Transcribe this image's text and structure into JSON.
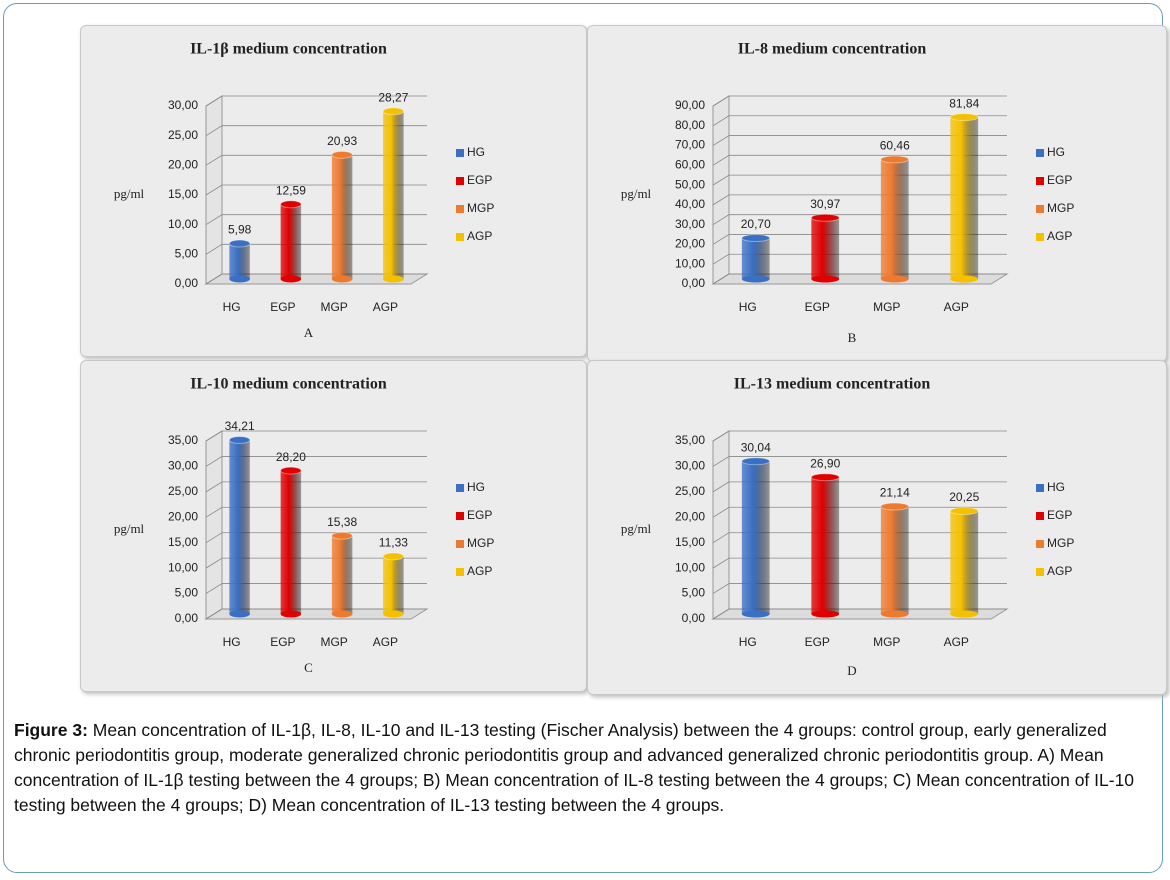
{
  "chart_data": [
    {
      "type": "bar",
      "title": "IL-1β medium concentration",
      "y_label": "pg/ml",
      "x_label": "A",
      "categories": [
        "HG",
        "EGP",
        "MGP",
        "AGP"
      ],
      "values": [
        5.98,
        12.59,
        20.93,
        28.27
      ],
      "value_labels": [
        "5,98",
        "12,59",
        "20,93",
        "28,27"
      ],
      "colors": [
        "#3a6fc4",
        "#e00000",
        "#ee7a30",
        "#f5c000"
      ],
      "legend": "right",
      "grid": true,
      "ylim": [
        0,
        30
      ],
      "yticks": [
        {
          "value": 0,
          "label": "0,00"
        },
        {
          "value": 5,
          "label": "5,00"
        },
        {
          "value": 10,
          "label": "10,00"
        },
        {
          "value": 15,
          "label": "15,00"
        },
        {
          "value": 20,
          "label": "20,00"
        },
        {
          "value": 25,
          "label": "25,00"
        },
        {
          "value": 30,
          "label": "30,00"
        }
      ]
    },
    {
      "type": "bar",
      "title": "IL-8 medium concentration",
      "y_label": "pg/ml",
      "x_label": "B",
      "categories": [
        "HG",
        "EGP",
        "MGP",
        "AGP"
      ],
      "values": [
        20.7,
        30.97,
        60.46,
        81.84
      ],
      "value_labels": [
        "20,70",
        "30,97",
        "60,46",
        "81,84"
      ],
      "colors": [
        "#3a6fc4",
        "#e00000",
        "#ee7a30",
        "#f5c000"
      ],
      "legend": "right",
      "grid": true,
      "ylim": [
        0,
        90
      ],
      "yticks": [
        {
          "value": 0,
          "label": "0,00"
        },
        {
          "value": 10,
          "label": "10,00"
        },
        {
          "value": 20,
          "label": "20,00"
        },
        {
          "value": 30,
          "label": "30,00"
        },
        {
          "value": 40,
          "label": "40,00"
        },
        {
          "value": 50,
          "label": "50,00"
        },
        {
          "value": 60,
          "label": "60,00"
        },
        {
          "value": 70,
          "label": "70,00"
        },
        {
          "value": 80,
          "label": "80,00"
        },
        {
          "value": 90,
          "label": "90,00"
        }
      ]
    },
    {
      "type": "bar",
      "title": "IL-10 medium concentration",
      "y_label": "pg/ml",
      "x_label": "C",
      "categories": [
        "HG",
        "EGP",
        "MGP",
        "AGP"
      ],
      "values": [
        34.21,
        28.2,
        15.38,
        11.33
      ],
      "value_labels": [
        "34,21",
        "28,20",
        "15,38",
        "11,33"
      ],
      "colors": [
        "#3a6fc4",
        "#e00000",
        "#ee7a30",
        "#f5c000"
      ],
      "legend": "right",
      "grid": true,
      "ylim": [
        0,
        35
      ],
      "yticks": [
        {
          "value": 0,
          "label": "0,00"
        },
        {
          "value": 5,
          "label": "5,00"
        },
        {
          "value": 10,
          "label": "10,00"
        },
        {
          "value": 15,
          "label": "15,00"
        },
        {
          "value": 20,
          "label": "20,00"
        },
        {
          "value": 25,
          "label": "25,00"
        },
        {
          "value": 30,
          "label": "30,00"
        },
        {
          "value": 35,
          "label": "35,00"
        }
      ]
    },
    {
      "type": "bar",
      "title": "IL-13 medium concentration",
      "y_label": "pg/ml",
      "x_label": "D",
      "categories": [
        "HG",
        "EGP",
        "MGP",
        "AGP"
      ],
      "values": [
        30.04,
        26.9,
        21.14,
        20.25
      ],
      "value_labels": [
        "30,04",
        "26,90",
        "21,14",
        "20,25"
      ],
      "colors": [
        "#3a6fc4",
        "#e00000",
        "#ee7a30",
        "#f5c000"
      ],
      "legend": "right",
      "grid": true,
      "ylim": [
        0,
        35
      ],
      "yticks": [
        {
          "value": 0,
          "label": "0,00"
        },
        {
          "value": 5,
          "label": "5,00"
        },
        {
          "value": 10,
          "label": "10,00"
        },
        {
          "value": 15,
          "label": "15,00"
        },
        {
          "value": 20,
          "label": "20,00"
        },
        {
          "value": 25,
          "label": "25,00"
        },
        {
          "value": 30,
          "label": "30,00"
        },
        {
          "value": 35,
          "label": "35,00"
        }
      ]
    }
  ],
  "caption": {
    "label": "Figure 3:",
    "text": "Mean concentration of IL-1β, IL-8, IL-10 and IL-13 testing (Fischer Analysis) between the 4 groups: control group, early generalized chronic periodontitis group, moderate generalized chronic periodontitis group and advanced generalized chronic periodontitis group. A) Mean concentration of IL-1β testing between the 4 groups; B) Mean concentration of IL-8 testing between the 4 groups; C) Mean concentration of IL-10 testing between the 4 groups; D) Mean concentration of IL-13 testing between the 4 groups."
  }
}
